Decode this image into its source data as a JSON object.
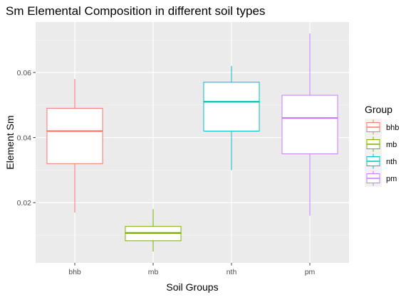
{
  "chart_data": {
    "type": "box",
    "title": "Sm Elemental Composition in different soil types",
    "xlabel": "Soil Groups",
    "ylabel": "Element Sm",
    "ylim": [
      0.0015,
      0.0755
    ],
    "yticks": [
      0.02,
      0.04,
      0.06
    ],
    "ytick_labels": [
      "0.02",
      "0.04",
      "0.06"
    ],
    "categories": [
      "bhb",
      "mb",
      "nth",
      "pm"
    ],
    "grid": true,
    "legend": {
      "title": "Group",
      "placement": "right"
    },
    "series": [
      {
        "name": "bhb",
        "color": "#F8766D",
        "whisker_low": 0.017,
        "q1": 0.032,
        "median": 0.042,
        "q3": 0.049,
        "whisker_high": 0.058
      },
      {
        "name": "mb",
        "color": "#7CAE00",
        "whisker_low": 0.005,
        "q1": 0.0083,
        "median": 0.0107,
        "q3": 0.0127,
        "whisker_high": 0.018
      },
      {
        "name": "nth",
        "color": "#00BFC4",
        "whisker_low": 0.03,
        "q1": 0.042,
        "median": 0.051,
        "q3": 0.057,
        "whisker_high": 0.062
      },
      {
        "name": "pm",
        "color": "#C77CFF",
        "whisker_low": 0.016,
        "q1": 0.035,
        "median": 0.046,
        "q3": 0.053,
        "whisker_high": 0.072
      }
    ]
  }
}
